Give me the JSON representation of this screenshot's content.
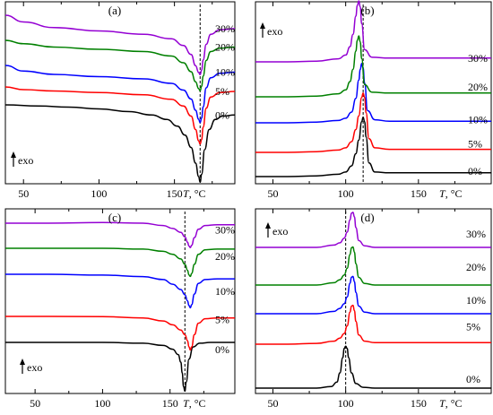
{
  "chart_data": [
    {
      "panel": "(a)",
      "type": "line",
      "xlabel_italic": "T",
      "xlabel_unit": ", °C",
      "x_ticks": [
        50,
        100,
        150
      ],
      "xlim": [
        38,
        190
      ],
      "exo_label": "exo",
      "exo_direction": "up",
      "reference_line_x": 167,
      "series": [
        {
          "name": "0%",
          "color": "#000000",
          "x": [
            38,
            60,
            80,
            100,
            120,
            135,
            145,
            152,
            157,
            161,
            164,
            166,
            167,
            168,
            170,
            173,
            177,
            182,
            190
          ],
          "y": [
            0.0,
            -0.05,
            -0.1,
            -0.18,
            -0.3,
            -0.45,
            -0.65,
            -0.95,
            -1.35,
            -1.9,
            -2.6,
            -3.2,
            -3.45,
            -3.1,
            -2.0,
            -1.1,
            -0.65,
            -0.5,
            -0.45
          ]
        },
        {
          "name": "5%",
          "color": "#ff0000",
          "x": [
            38,
            50,
            70,
            100,
            130,
            148,
            156,
            161,
            164,
            166,
            167,
            168,
            169,
            171,
            174,
            180,
            190
          ],
          "y": [
            0.0,
            -0.12,
            -0.18,
            -0.25,
            -0.35,
            -0.55,
            -0.85,
            -1.3,
            -1.9,
            -2.4,
            -2.55,
            -2.35,
            -1.8,
            -0.95,
            -0.45,
            -0.25,
            -0.2
          ]
        },
        {
          "name": "10%",
          "color": "#0000ff",
          "x": [
            38,
            50,
            70,
            100,
            130,
            148,
            156,
            161,
            164,
            166,
            167,
            168,
            169,
            171,
            174,
            180,
            190
          ],
          "y": [
            0.0,
            -0.25,
            -0.4,
            -0.5,
            -0.6,
            -0.8,
            -1.1,
            -1.5,
            -2.0,
            -2.4,
            -2.55,
            -2.35,
            -1.85,
            -1.0,
            -0.55,
            -0.35,
            -0.3
          ]
        },
        {
          "name": "20%",
          "color": "#008000",
          "x": [
            38,
            50,
            70,
            100,
            130,
            148,
            156,
            161,
            164,
            166,
            167,
            168,
            169,
            171,
            174,
            180,
            190
          ],
          "y": [
            0.0,
            -0.15,
            -0.3,
            -0.4,
            -0.5,
            -0.7,
            -1.0,
            -1.4,
            -1.85,
            -2.15,
            -2.25,
            -2.05,
            -1.6,
            -0.9,
            -0.5,
            -0.35,
            -0.3
          ]
        },
        {
          "name": "30%",
          "color": "#9400d3",
          "x": [
            38,
            50,
            70,
            100,
            130,
            148,
            156,
            161,
            164,
            166,
            167,
            168,
            169,
            171,
            174,
            180,
            190
          ],
          "y": [
            0.0,
            -0.3,
            -0.55,
            -0.7,
            -0.85,
            -1.05,
            -1.35,
            -1.75,
            -2.25,
            -2.55,
            -2.65,
            -2.45,
            -2.0,
            -1.3,
            -0.85,
            -0.65,
            -0.6
          ]
        }
      ]
    },
    {
      "panel": "(b)",
      "type": "line",
      "xlabel_italic": "T",
      "xlabel_unit": ", °C",
      "x_ticks": [
        50,
        100,
        150
      ],
      "xlim": [
        38,
        200
      ],
      "exo_label": "exo",
      "exo_direction": "up",
      "reference_line_x": 112,
      "series": [
        {
          "name": "0%",
          "color": "#000000",
          "x": [
            38,
            60,
            80,
            95,
            100,
            104,
            107,
            109,
            111,
            112,
            113,
            114,
            116,
            120,
            130,
            150,
            170,
            200
          ],
          "y": [
            0.0,
            0.0,
            0.05,
            0.15,
            0.3,
            0.7,
            1.5,
            2.4,
            3.6,
            3.9,
            3.6,
            2.6,
            0.9,
            0.3,
            0.25,
            0.25,
            0.25,
            0.25
          ]
        },
        {
          "name": "5%",
          "color": "#ff0000",
          "x": [
            38,
            60,
            80,
            95,
            100,
            104,
            107,
            109,
            111,
            112,
            113,
            114,
            116,
            120,
            130,
            150,
            170,
            200
          ],
          "y": [
            0.0,
            0.0,
            0.05,
            0.15,
            0.3,
            0.7,
            1.5,
            2.4,
            3.6,
            3.9,
            3.6,
            2.6,
            0.9,
            0.3,
            0.2,
            0.2,
            0.2,
            0.2
          ]
        },
        {
          "name": "10%",
          "color": "#0000ff",
          "x": [
            38,
            60,
            80,
            95,
            100,
            104,
            107,
            109,
            110,
            111,
            112,
            113,
            115,
            120,
            130,
            150,
            170,
            200
          ],
          "y": [
            0.0,
            0.0,
            0.05,
            0.15,
            0.3,
            0.7,
            1.6,
            2.8,
            3.5,
            3.9,
            3.6,
            2.6,
            0.8,
            0.2,
            0.1,
            0.1,
            0.1,
            0.1
          ]
        },
        {
          "name": "20%",
          "color": "#008000",
          "x": [
            38,
            60,
            80,
            95,
            100,
            103,
            105,
            107,
            108,
            109,
            110,
            111,
            113,
            118,
            130,
            150,
            170,
            200
          ],
          "y": [
            0.0,
            0.0,
            0.05,
            0.2,
            0.45,
            1.0,
            1.8,
            3.0,
            3.7,
            4.0,
            3.6,
            2.5,
            0.8,
            0.3,
            0.25,
            0.25,
            0.25,
            0.25
          ]
        },
        {
          "name": "30%",
          "color": "#9400d3",
          "x": [
            38,
            60,
            80,
            95,
            100,
            103,
            105,
            107,
            108,
            109,
            110,
            111,
            113,
            118,
            130,
            150,
            170,
            200
          ],
          "y": [
            0.0,
            0.0,
            0.05,
            0.2,
            0.45,
            1.0,
            1.8,
            3.0,
            3.7,
            4.0,
            3.6,
            2.5,
            0.8,
            0.3,
            0.25,
            0.25,
            0.25,
            0.25
          ]
        }
      ]
    },
    {
      "panel": "(c)",
      "type": "line",
      "xlabel_italic": "T",
      "xlabel_unit": ", °C",
      "x_ticks": [
        50,
        100,
        150
      ],
      "xlim": [
        28,
        198
      ],
      "exo_label": "exo",
      "exo_direction": "up",
      "reference_line_x": 161,
      "series": [
        {
          "name": "0%",
          "color": "#000000",
          "x": [
            28,
            60,
            100,
            130,
            145,
            152,
            156,
            158,
            159,
            160,
            161,
            162,
            164,
            167,
            172,
            180,
            198
          ],
          "y": [
            0.0,
            0.0,
            0.0,
            -0.05,
            -0.2,
            -0.45,
            -0.8,
            -1.3,
            -2.0,
            -2.9,
            -3.2,
            -2.6,
            -1.1,
            -0.3,
            -0.05,
            0.0,
            0.0
          ]
        },
        {
          "name": "5%",
          "color": "#ff0000",
          "x": [
            28,
            60,
            100,
            130,
            145,
            152,
            158,
            161,
            163,
            164,
            165,
            166,
            168,
            171,
            176,
            185,
            198
          ],
          "y": [
            0.0,
            0.0,
            -0.02,
            -0.1,
            -0.3,
            -0.55,
            -0.9,
            -1.2,
            -1.6,
            -2.0,
            -2.2,
            -2.0,
            -1.2,
            -0.45,
            -0.15,
            -0.1,
            -0.1
          ]
        },
        {
          "name": "10%",
          "color": "#0000ff",
          "x": [
            28,
            60,
            100,
            130,
            145,
            152,
            158,
            161,
            163,
            164,
            165,
            166,
            168,
            171,
            176,
            185,
            198
          ],
          "y": [
            0.0,
            0.0,
            -0.05,
            -0.15,
            -0.35,
            -0.65,
            -1.0,
            -1.35,
            -1.75,
            -2.05,
            -2.2,
            -2.0,
            -1.3,
            -0.6,
            -0.35,
            -0.3,
            -0.3
          ]
        },
        {
          "name": "20%",
          "color": "#008000",
          "x": [
            28,
            60,
            100,
            130,
            145,
            152,
            158,
            161,
            163,
            164,
            165,
            166,
            168,
            171,
            176,
            185,
            198
          ],
          "y": [
            0.0,
            0.0,
            0.0,
            -0.05,
            -0.2,
            -0.4,
            -0.7,
            -1.05,
            -1.45,
            -1.75,
            -1.85,
            -1.65,
            -1.05,
            -0.4,
            -0.1,
            -0.05,
            -0.05
          ]
        },
        {
          "name": "30%",
          "color": "#9400d3",
          "x": [
            28,
            60,
            100,
            130,
            145,
            152,
            158,
            161,
            163,
            164,
            165,
            166,
            168,
            171,
            176,
            185,
            198
          ],
          "y": [
            0.0,
            0.0,
            0.05,
            0.0,
            -0.15,
            -0.35,
            -0.6,
            -0.9,
            -1.25,
            -1.5,
            -1.6,
            -1.45,
            -0.95,
            -0.4,
            -0.15,
            -0.1,
            -0.1
          ]
        }
      ]
    },
    {
      "panel": "(d)",
      "type": "line",
      "xlabel_italic": "T",
      "xlabel_unit": ", °C",
      "x_ticks": [
        50,
        100,
        150
      ],
      "xlim": [
        38,
        200
      ],
      "exo_label": "exo",
      "exo_direction": "up",
      "reference_line_x": 100,
      "series": [
        {
          "name": "0%",
          "color": "#000000",
          "x": [
            38,
            60,
            80,
            90,
            94,
            96,
            98,
            99,
            100,
            101,
            102,
            104,
            107,
            112,
            120,
            140,
            170,
            200
          ],
          "y": [
            0.0,
            0.0,
            0.0,
            0.1,
            0.4,
            1.0,
            2.0,
            2.6,
            2.75,
            2.6,
            2.0,
            1.0,
            0.3,
            0.05,
            0.0,
            0.0,
            0.0,
            0.0
          ]
        },
        {
          "name": "5%",
          "color": "#ff0000",
          "x": [
            38,
            60,
            80,
            92,
            96,
            99,
            101,
            103,
            104,
            105,
            106,
            107,
            109,
            113,
            120,
            140,
            170,
            200
          ],
          "y": [
            0.0,
            0.0,
            0.05,
            0.2,
            0.4,
            0.7,
            1.2,
            2.1,
            2.5,
            2.55,
            2.2,
            1.5,
            0.6,
            0.2,
            0.1,
            0.1,
            0.1,
            0.1
          ]
        },
        {
          "name": "10%",
          "color": "#0000ff",
          "x": [
            38,
            60,
            80,
            92,
            96,
            99,
            101,
            103,
            104,
            105,
            106,
            107,
            109,
            113,
            120,
            140,
            170,
            200
          ],
          "y": [
            0.0,
            0.0,
            0.0,
            0.15,
            0.35,
            0.65,
            1.1,
            2.0,
            2.4,
            2.45,
            2.1,
            1.4,
            0.5,
            0.1,
            0.0,
            0.0,
            0.0,
            0.0
          ]
        },
        {
          "name": "20%",
          "color": "#008000",
          "x": [
            38,
            60,
            80,
            92,
            96,
            99,
            101,
            103,
            104,
            105,
            106,
            107,
            109,
            113,
            120,
            140,
            170,
            200
          ],
          "y": [
            0.0,
            0.0,
            0.0,
            0.15,
            0.35,
            0.65,
            1.1,
            2.0,
            2.45,
            2.5,
            2.15,
            1.4,
            0.5,
            0.1,
            0.0,
            0.0,
            0.0,
            0.0
          ]
        },
        {
          "name": "30%",
          "color": "#9400d3",
          "x": [
            38,
            60,
            80,
            92,
            96,
            99,
            101,
            103,
            104,
            105,
            106,
            107,
            109,
            113,
            120,
            140,
            170,
            200
          ],
          "y": [
            0.0,
            0.0,
            0.0,
            0.15,
            0.3,
            0.6,
            1.0,
            1.8,
            2.25,
            2.3,
            2.0,
            1.3,
            0.45,
            0.1,
            0.0,
            0.0,
            0.0,
            0.0
          ]
        }
      ]
    }
  ]
}
